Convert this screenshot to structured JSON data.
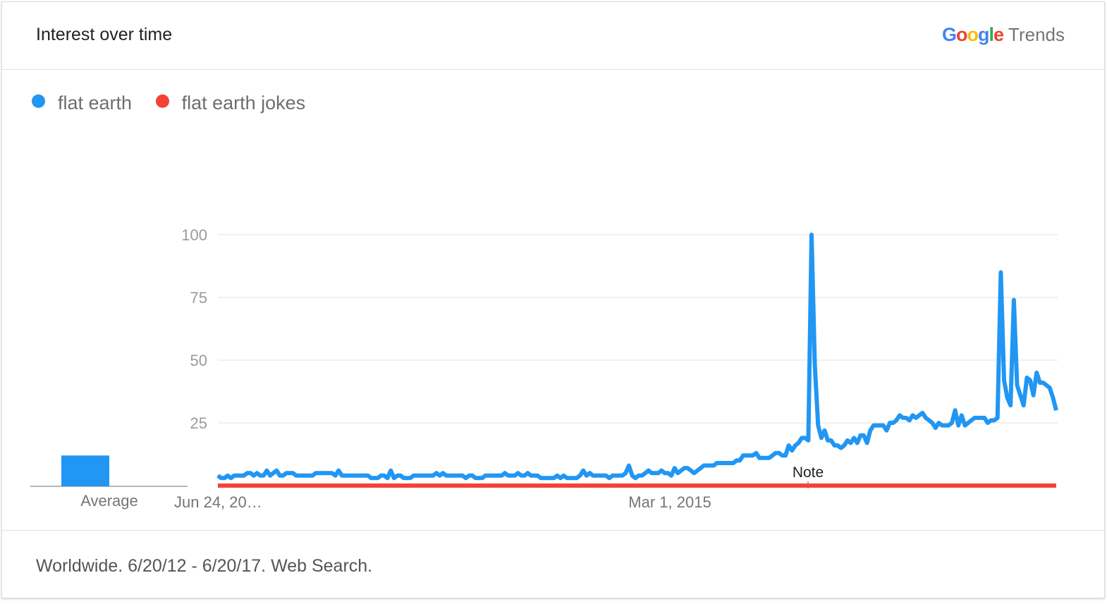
{
  "header": {
    "title": "Interest over time",
    "brand_google": [
      "G",
      "o",
      "o",
      "g",
      "l",
      "e"
    ],
    "brand_google_colors": [
      "#4285F4",
      "#EA4335",
      "#FBBC05",
      "#4285F4",
      "#34A853",
      "#EA4335"
    ],
    "brand_trends": "Trends"
  },
  "footer": {
    "text": "Worldwide. 6/20/12 - 6/20/17. Web Search."
  },
  "chart_data": {
    "type": "line",
    "ylim": [
      0,
      100
    ],
    "yticks": [
      25,
      50,
      75,
      100
    ],
    "ytick_labels": [
      "25",
      "50",
      "75",
      "100"
    ],
    "x_tick_labels": [
      "Jun 24, 20…",
      "Mar 1, 2015"
    ],
    "average_label": "Average",
    "note_label": "Note",
    "series": [
      {
        "name": "flat earth",
        "color": "#2196F3",
        "average": 12,
        "values": [
          4,
          3,
          3,
          4,
          3,
          4,
          4,
          4,
          4,
          5,
          5,
          4,
          5,
          4,
          4,
          6,
          4,
          5,
          6,
          4,
          4,
          5,
          5,
          5,
          4,
          4,
          4,
          4,
          4,
          4,
          5,
          5,
          5,
          5,
          5,
          5,
          4,
          6,
          4,
          4,
          4,
          4,
          4,
          4,
          4,
          4,
          4,
          3,
          3,
          3,
          4,
          4,
          3,
          6,
          3,
          4,
          4,
          3,
          3,
          3,
          4,
          4,
          4,
          4,
          4,
          4,
          4,
          5,
          4,
          5,
          4,
          4,
          4,
          4,
          4,
          4,
          3,
          4,
          4,
          3,
          3,
          3,
          4,
          4,
          4,
          4,
          4,
          4,
          5,
          4,
          4,
          4,
          5,
          4,
          4,
          5,
          4,
          4,
          4,
          3,
          3,
          3,
          3,
          3,
          4,
          3,
          4,
          3,
          3,
          3,
          3,
          4,
          6,
          4,
          5,
          4,
          4,
          4,
          4,
          4,
          3,
          4,
          4,
          4,
          4,
          5,
          8,
          4,
          3,
          4,
          4,
          5,
          6,
          5,
          5,
          5,
          6,
          5,
          5,
          4,
          7,
          5,
          6,
          7,
          7,
          6,
          5,
          6,
          7,
          8,
          8,
          8,
          8,
          9,
          9,
          9,
          9,
          9,
          9,
          10,
          10,
          12,
          12,
          12,
          12,
          13,
          11,
          11,
          11,
          11,
          12,
          13,
          13,
          12,
          12,
          16,
          14,
          16,
          17,
          19,
          19,
          18,
          100,
          48,
          24,
          19,
          22,
          18,
          18,
          16,
          16,
          15,
          16,
          18,
          17,
          19,
          17,
          20,
          20,
          17,
          22,
          24,
          24,
          24,
          24,
          22,
          25,
          25,
          26,
          28,
          27,
          27,
          26,
          28,
          27,
          28,
          29,
          27,
          26,
          25,
          23,
          25,
          24,
          24,
          24,
          25,
          30,
          24,
          28,
          24,
          25,
          26,
          27,
          27,
          27,
          27,
          25,
          26,
          26,
          27,
          85,
          42,
          35,
          32,
          74,
          40,
          36,
          32,
          43,
          42,
          36,
          45,
          41,
          41,
          40,
          39,
          35,
          30
        ]
      },
      {
        "name": "flat earth jokes",
        "color": "#F44336",
        "average": 0,
        "values": [
          0,
          0
        ]
      }
    ]
  }
}
